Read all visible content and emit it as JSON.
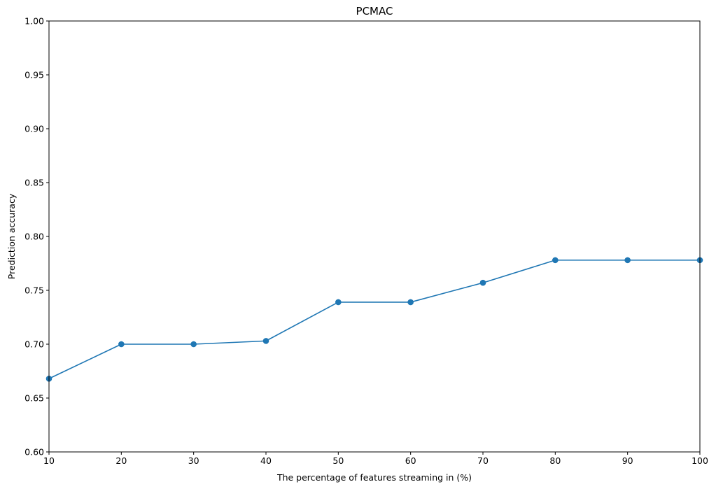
{
  "chart_data": {
    "type": "line",
    "title": "PCMAC",
    "xlabel": "The percentage of features streaming in (%)",
    "ylabel": "Prediction accuracy",
    "x": [
      10,
      20,
      30,
      40,
      50,
      60,
      70,
      80,
      90,
      100
    ],
    "series": [
      {
        "values": [
          0.668,
          0.7,
          0.7,
          0.703,
          0.739,
          0.739,
          0.757,
          0.778,
          0.778,
          0.778
        ]
      }
    ],
    "xlim": [
      10,
      100
    ],
    "ylim": [
      0.6,
      1.0
    ],
    "xticks": [
      "10",
      "20",
      "30",
      "40",
      "50",
      "60",
      "70",
      "80",
      "90",
      "100"
    ],
    "yticks": [
      "0.60",
      "0.65",
      "0.70",
      "0.75",
      "0.80",
      "0.85",
      "0.90",
      "0.95",
      "1.00"
    ],
    "grid": false,
    "markers": true,
    "colors": {
      "line": "#1f77b4",
      "axes": "#000000"
    }
  }
}
